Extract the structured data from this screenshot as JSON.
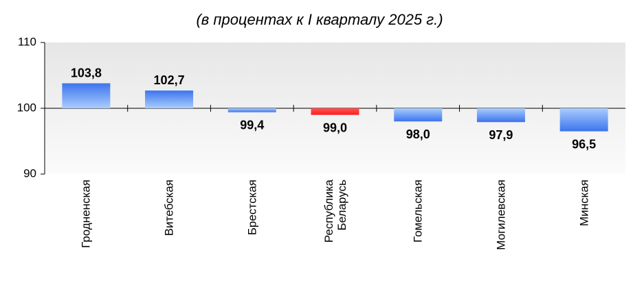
{
  "chart_data": {
    "type": "bar",
    "title": "(в процентах к I кварталу 2025 г.)",
    "categories": [
      "Гродненская",
      "Витебская",
      "Брестская",
      "Республика Беларусь",
      "Гомельская",
      "Могилевская",
      "Минская"
    ],
    "values": [
      103.8,
      102.7,
      99.4,
      99.0,
      98.0,
      97.9,
      96.5
    ],
    "value_labels": [
      "103,8",
      "102,7",
      "99,4",
      "99,0",
      "98,0",
      "97,9",
      "96,5"
    ],
    "colors": [
      "#3d74ee",
      "#3d74ee",
      "#3d74ee",
      "#ff1a1a",
      "#3d74ee",
      "#3d74ee",
      "#3d74ee"
    ],
    "baseline": 100,
    "ylim": [
      90,
      110
    ],
    "yticks": [
      90,
      100,
      110
    ]
  }
}
